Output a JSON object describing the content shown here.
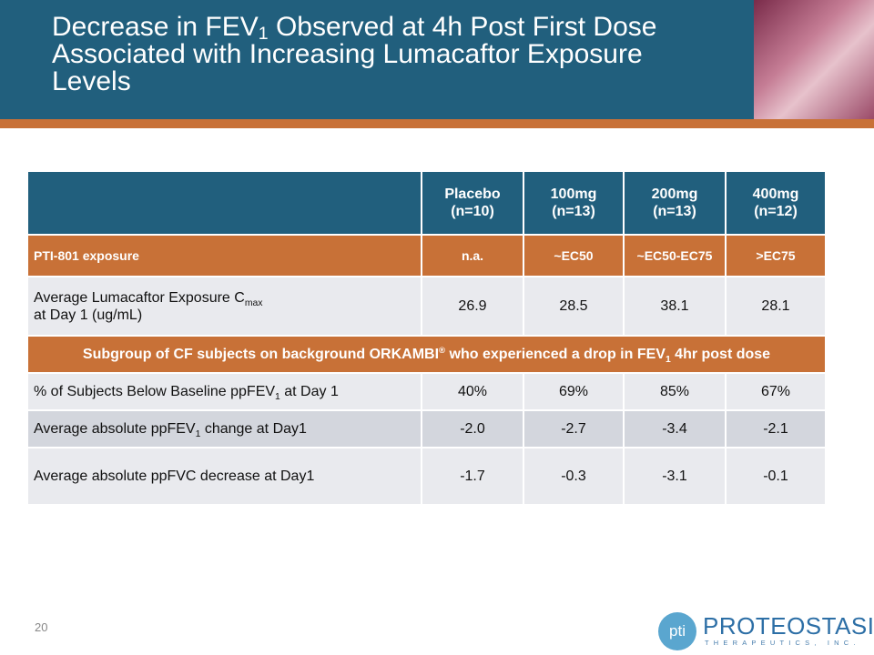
{
  "header": {
    "title": {
      "parts": [
        "Decrease in FEV",
        "1",
        " Observed at 4h Post First Dose Associated with Increasing Lumacaftor Exposure Levels"
      ]
    }
  },
  "table": {
    "columns": [
      {
        "name": "Placebo",
        "n": "(n=10)"
      },
      {
        "name": "100mg",
        "n": "(n=13)"
      },
      {
        "name": "200mg",
        "n": "(n=13)"
      },
      {
        "name": "400mg",
        "n": "(n=12)"
      }
    ],
    "rows": [
      {
        "label": {
          "parts": [
            "PTI-801 exposure"
          ]
        },
        "cells": [
          "n.a.",
          "~EC50",
          "~EC50-EC75",
          ">EC75"
        ]
      },
      {
        "label": {
          "parts": [
            "Average Lumacaftor Exposure C",
            "max",
            "at Day 1 (ug/mL)"
          ]
        },
        "cells": [
          "26.9",
          "28.5",
          "38.1",
          "28.1"
        ]
      },
      {
        "label": {
          "parts": [
            "Subgroup of CF subjects on background ORKAMBI",
            "®",
            " who experienced a drop in FEV",
            "1",
            " 4hr post dose"
          ]
        }
      },
      {
        "label": {
          "parts": [
            "% of Subjects Below Baseline ppFEV",
            "1",
            " at Day 1"
          ]
        },
        "cells": [
          "40%",
          "69%",
          "85%",
          "67%"
        ]
      },
      {
        "label": {
          "parts": [
            "Average absolute ppFEV",
            "1",
            " change at Day1"
          ]
        },
        "cells": [
          "-2.0",
          "-2.7",
          "-3.4",
          "-2.1"
        ]
      },
      {
        "label": {
          "parts": [
            "Average absolute ppFVC decrease at Day1"
          ]
        },
        "cells": [
          "-1.7",
          "-0.3",
          "-3.1",
          "-0.1"
        ]
      }
    ]
  },
  "footer": {
    "page_number": "20",
    "logo": {
      "mark": "pti",
      "name": "PROTEOSTASIS",
      "tagline": "THERAPEUTICS, INC."
    }
  }
}
